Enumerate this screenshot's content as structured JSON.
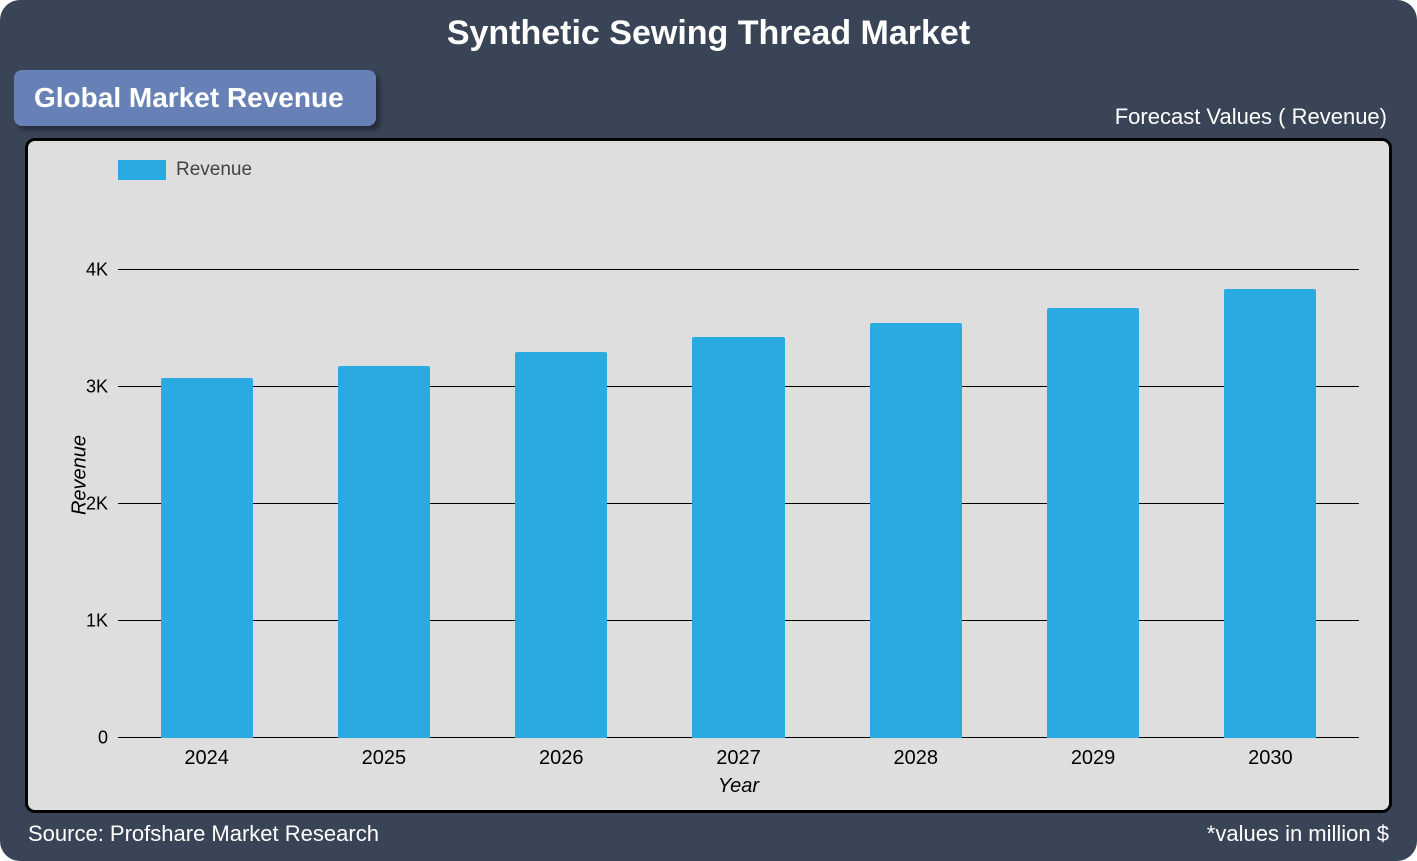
{
  "title": "Synthetic Sewing Thread Market",
  "badge": "Global Market Revenue",
  "forecast_label": "Forecast Values ( Revenue)",
  "footer_source": "Source: Profshare Market Research",
  "footer_values": "*values in million $",
  "chart": {
    "type": "bar",
    "background_outer": "#394457",
    "background_plot": "#dedede",
    "plot_border_color": "#000000",
    "grid_color": "#000000",
    "badge_bg": "#6781b7",
    "badge_text_color": "#ffffff",
    "title_color": "#ffffff",
    "title_fontsize": 34,
    "legend": {
      "label": "Revenue",
      "swatch_color": "#29abe2"
    },
    "y_axis": {
      "label": "Revenue",
      "min": 0,
      "max": 4500,
      "ticks": [
        {
          "value": 0,
          "label": "0"
        },
        {
          "value": 1000,
          "label": "1K"
        },
        {
          "value": 2000,
          "label": "2K"
        },
        {
          "value": 3000,
          "label": "3K"
        },
        {
          "value": 4000,
          "label": "4K"
        }
      ],
      "tick_fontsize": 18,
      "label_fontsize": 20,
      "label_fontstyle": "italic"
    },
    "x_axis": {
      "label": "Year",
      "label_fontsize": 20,
      "label_fontstyle": "italic",
      "tick_fontsize": 20
    },
    "bars": {
      "color": "#29abe2",
      "width_fraction": 0.52,
      "categories": [
        "2024",
        "2025",
        "2026",
        "2027",
        "2028",
        "2029",
        "2030"
      ],
      "values": [
        3070,
        3180,
        3300,
        3420,
        3540,
        3670,
        3830
      ]
    }
  }
}
